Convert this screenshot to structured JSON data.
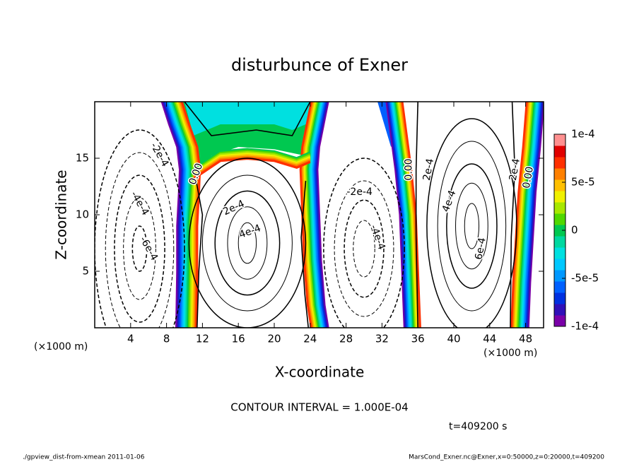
{
  "chart_data": {
    "type": "contour",
    "title": "disturbunce of Exner",
    "xlabel": "X-coordinate",
    "ylabel": "Z-coordinate",
    "x_unit": "(×1000 m)",
    "y_unit": "(×1000 m)",
    "xlim": [
      0,
      50
    ],
    "ylim": [
      0,
      20
    ],
    "xticks": [
      4,
      8,
      12,
      16,
      20,
      24,
      28,
      32,
      36,
      40,
      44,
      48
    ],
    "yticks": [
      5,
      10,
      15
    ],
    "colorbar": {
      "lim": [
        -0.0001,
        0.0001
      ],
      "ticks": [
        {
          "value": 0.0001,
          "label": "1e-4"
        },
        {
          "value": 5e-05,
          "label": "5e-5"
        },
        0,
        {
          "value": -5e-05,
          "label": "-5e-5"
        },
        {
          "value": -0.0001,
          "label": "-1e-4"
        }
      ],
      "colors": [
        "#7a00a8",
        "#3010b8",
        "#0030e0",
        "#0060ff",
        "#0098ff",
        "#00c8ff",
        "#00e0e0",
        "#00d8a0",
        "#00c850",
        "#50d800",
        "#a8e800",
        "#f0f000",
        "#ffc000",
        "#ff8000",
        "#ff3000",
        "#e00000",
        "#ff9090"
      ]
    },
    "contour_labels": [
      {
        "value": -0.0002,
        "label": "-2e-4"
      },
      {
        "value": -0.0004,
        "label": "-4e-4"
      },
      {
        "value": -0.0006,
        "label": "-6e-4"
      },
      {
        "value": 0,
        "label": "0.00"
      },
      {
        "value": 0.0002,
        "label": "2e-4"
      },
      {
        "value": 0.0004,
        "label": "4e-4"
      },
      {
        "value": -0.0002,
        "label": "-2e-4"
      },
      {
        "value": -0.0004,
        "label": "-4e-4"
      },
      {
        "value": 0,
        "label": "0.00"
      },
      {
        "value": 0.0002,
        "label": "2e-4"
      },
      {
        "value": 0.0004,
        "label": "4e-4"
      },
      {
        "value": 0.0006,
        "label": "6e-4"
      },
      {
        "value": 0.0002,
        "label": "2e-4"
      },
      {
        "value": 0,
        "label": "0.00"
      }
    ],
    "contour_interval_text": "CONTOUR INTERVAL = 1.000E-04",
    "time": "t=409200 s",
    "footer_left": "./gpview_dist-from-xmean  2011-01-06",
    "footer_right": "MarsCond_Exner.nc@Exner,x=0:50000,z=0:20000,t=409200"
  }
}
